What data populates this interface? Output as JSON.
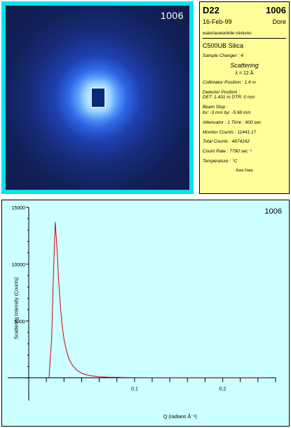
{
  "detector": {
    "run_number": "1006"
  },
  "info": {
    "instrument": "D22",
    "run_number": "1006",
    "date": "16-Feb-99",
    "user": "Dore",
    "subtitle": "water/acetonitrile mixtures",
    "sample": "C500UB Silica",
    "sample_changer": "Sample Changer : 4",
    "mode": "Scattering",
    "wavelength": "λ =  12 Å",
    "collimator": "Collimator Position : 1.4 m",
    "detector_pos_title": "Detector Position :",
    "detector_pos": "DET: 1.431 m    DTR: 0 mm",
    "beam_stop_title": "Beam Stop :",
    "beam_stop": "bx: -3 mm     by: -5.98 mm",
    "attenuator": "Attenuator : 1     Time : 600 sec",
    "monitor": "Monitor Counts : 11441.17",
    "total": "Total Counts : 4674162",
    "count_rate": "Count Rate : 7790 sec⁻¹",
    "temperature": "Temperature :        °C",
    "raw": "Raw Data"
  },
  "plot": {
    "run_number": "1006"
  },
  "chart_data": {
    "type": "line",
    "ylabel": "Scattering Intensity (Counts)",
    "xlabel": "Q (radians Å⁻¹)",
    "xlim": [
      -0.02,
      0.26
    ],
    "ylim": [
      -2000,
      15000
    ],
    "xticks": [
      0.1,
      0.2
    ],
    "yticks": [
      0,
      5000,
      10000,
      15000
    ],
    "ytick_labels": [
      "",
      "5000",
      "10000",
      "15000"
    ],
    "series": [
      {
        "color": "#d40000",
        "x": [
          0.003,
          0.006,
          0.008,
          0.01,
          0.012,
          0.014,
          0.016,
          0.018,
          0.02,
          0.023,
          0.026,
          0.03,
          0.035,
          0.04,
          0.045,
          0.05,
          0.06,
          0.07,
          0.08,
          0.09,
          0.1,
          0.12,
          0.15,
          0.2,
          0.25
        ],
        "y": [
          0,
          3500,
          9000,
          13700,
          11500,
          8500,
          6200,
          4500,
          3400,
          2300,
          1600,
          1050,
          650,
          420,
          280,
          190,
          100,
          60,
          40,
          25,
          15,
          8,
          4,
          2,
          1
        ]
      }
    ]
  }
}
